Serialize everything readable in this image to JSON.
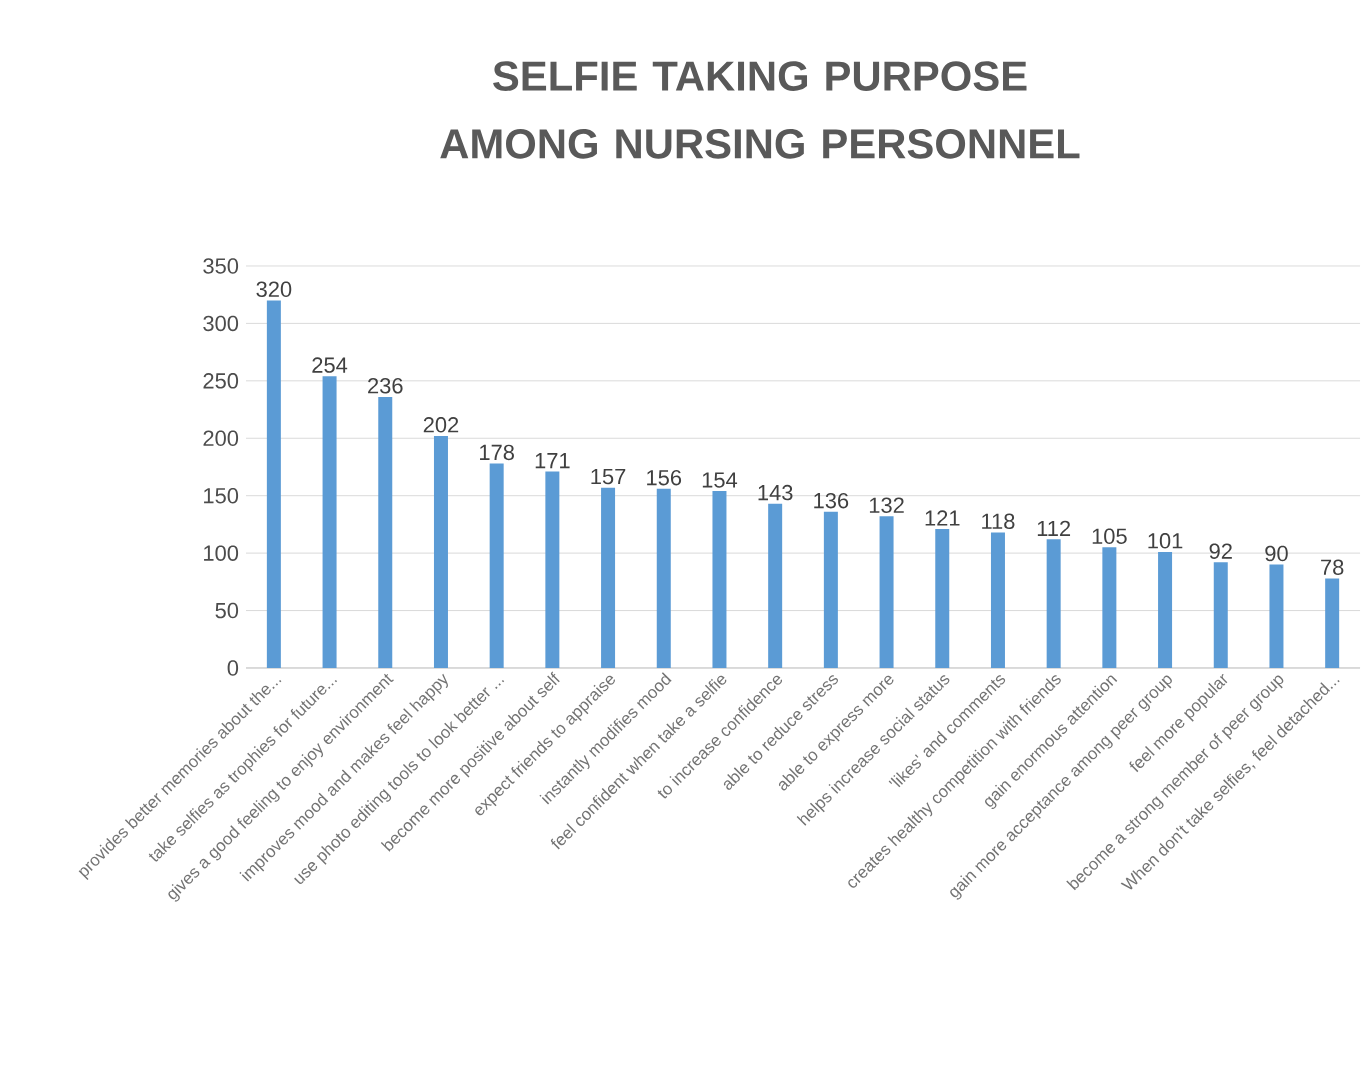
{
  "chart_data": {
    "type": "bar",
    "title": "SELFIE TAKING PURPOSE AMONG NURSING PERSONNEL",
    "categories": [
      "provides better memories about the...",
      "take selfies as trophies for future...",
      "gives a good feeling to enjoy environment",
      "improves mood and makes feel happy",
      "use photo editing tools to look better ...",
      "become more positive about self",
      "expect friends to appraise",
      "instantly modifies mood",
      "feel confident when take a selfie",
      "to increase confidence",
      "able to reduce stress",
      "able to express more",
      "helps increase social status",
      "'likes' and comments",
      "creates healthy competition with friends",
      "gain enormous attention",
      "gain more acceptance among peer group",
      "feel more popular",
      "become a strong member of peer group",
      "When don't take selfies, feel detached..."
    ],
    "values": [
      320,
      254,
      236,
      202,
      178,
      171,
      157,
      156,
      154,
      143,
      136,
      132,
      121,
      118,
      112,
      105,
      101,
      92,
      90,
      78
    ],
    "color": "#5b9bd5",
    "ylim": [
      0,
      350
    ],
    "yticks": [
      0,
      50,
      100,
      150,
      200,
      250,
      300,
      350
    ],
    "grid": "y",
    "data_labels": true
  }
}
